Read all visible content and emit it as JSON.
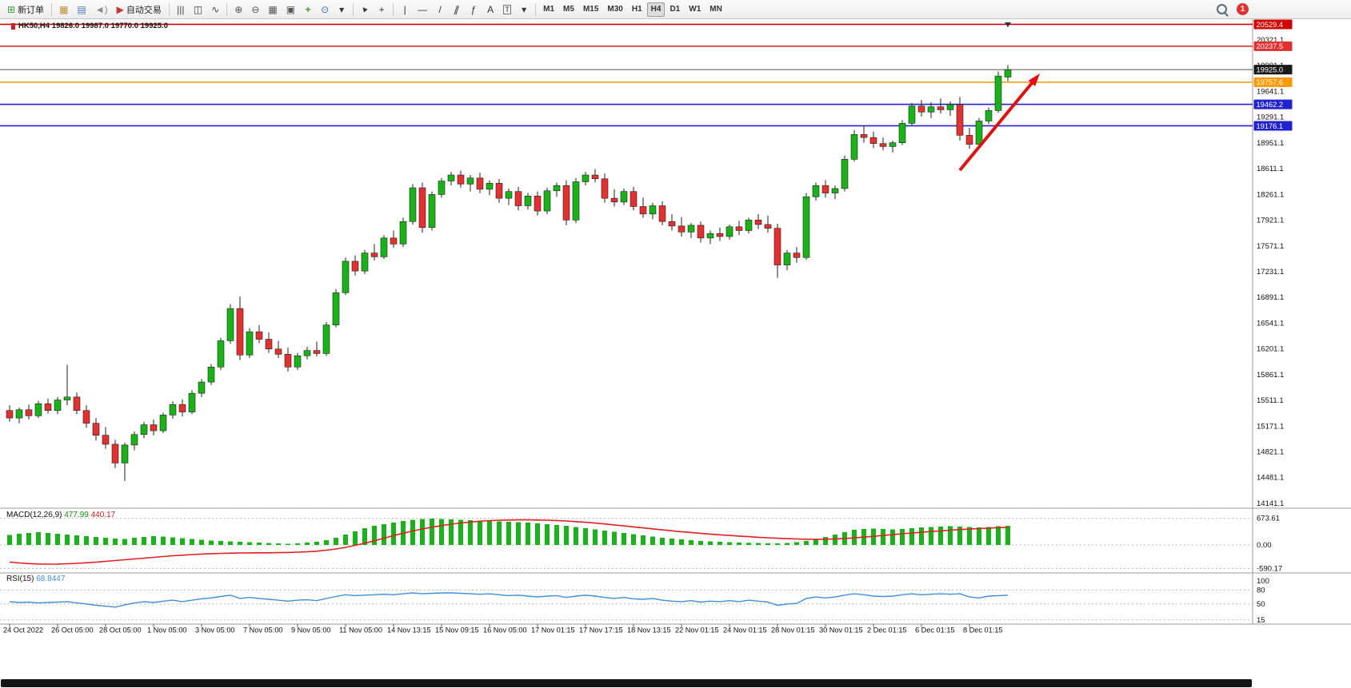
{
  "toolbar": {
    "groups": [
      [
        {
          "name": "new-order-button",
          "icon": "new-order-icon",
          "glyph": "⊞",
          "color": "#3aa13a",
          "label": "新订单"
        }
      ],
      [
        {
          "name": "new-chart-button",
          "icon": "new-chart-icon",
          "glyph": "▦",
          "color": "#b8912e"
        },
        {
          "name": "profiles-button",
          "icon": "profiles-icon",
          "glyph": "▤",
          "color": "#4a76b8"
        },
        {
          "name": "sound-alerts-button",
          "icon": "speaker-icon",
          "glyph": "◄)",
          "color": "#8a8a8a"
        },
        {
          "name": "algo-trading-button",
          "icon": "play-icon",
          "glyph": "▶",
          "color": "#cc3333",
          "label": "自动交易"
        }
      ],
      [
        {
          "name": "bar-chart-button",
          "icon": "bar-chart-icon",
          "glyph": "|||",
          "color": "#444"
        },
        {
          "name": "candlestick-chart-button",
          "icon": "candlestick-icon",
          "glyph": "◫",
          "color": "#444"
        },
        {
          "name": "line-chart-button",
          "icon": "line-chart-icon",
          "glyph": "∿",
          "color": "#444"
        }
      ],
      [
        {
          "name": "zoom-in-button",
          "icon": "zoom-in-icon",
          "glyph": "⊕",
          "color": "#555"
        },
        {
          "name": "zoom-out-button",
          "icon": "zoom-out-icon",
          "glyph": "⊖",
          "color": "#555"
        },
        {
          "name": "tile-windows-button",
          "icon": "tile-windows-icon",
          "glyph": "▦",
          "color": "#555"
        },
        {
          "name": "arrange-windows-button",
          "icon": "arrange-windows-icon",
          "glyph": "▣",
          "color": "#555"
        },
        {
          "name": "add-indicator-button",
          "icon": "plus-icon",
          "glyph": "+",
          "color": "#2e9e2e",
          "cls": "bold"
        },
        {
          "name": "period-button",
          "icon": "clock-icon",
          "glyph": "⊙",
          "color": "#3a6db8"
        },
        {
          "name": "chart-options-dropdown",
          "icon": "chevron-down-icon",
          "glyph": "▾",
          "color": "#333"
        }
      ],
      [
        {
          "name": "cursor-button",
          "icon": "cursor-icon",
          "glyph": "▲",
          "color": "#333",
          "cls": "rot-cursor"
        },
        {
          "name": "crosshair-button",
          "icon": "crosshair-icon",
          "glyph": "+",
          "color": "#333"
        }
      ],
      [
        {
          "name": "vertical-line-button",
          "icon": "vertical-line-icon",
          "glyph": "|",
          "color": "#333"
        },
        {
          "name": "horizontal-line-button",
          "icon": "horizontal-line-icon",
          "glyph": "—",
          "color": "#333"
        },
        {
          "name": "trendline-button",
          "icon": "trendline-icon",
          "glyph": "/",
          "color": "#333"
        },
        {
          "name": "channel-button",
          "icon": "channel-icon",
          "glyph": "∥",
          "color": "#333",
          "cls": "rot-channel"
        },
        {
          "name": "fibonacci-button",
          "icon": "fibonacci-icon",
          "glyph": "ƒ",
          "color": "#333"
        },
        {
          "name": "text-button",
          "icon": "text-icon",
          "glyph": "A",
          "color": "#333"
        },
        {
          "name": "label-button",
          "icon": "label-icon",
          "glyph": "T",
          "color": "#333",
          "cls": "boxed"
        },
        {
          "name": "shapes-dropdown",
          "icon": "chevron-down-icon",
          "glyph": "▾",
          "color": "#333"
        }
      ]
    ],
    "timeframes": [
      "M1",
      "M5",
      "M15",
      "M30",
      "H1",
      "H4",
      "D1",
      "W1",
      "MN"
    ],
    "active_timeframe": "H4",
    "notification_count": "1"
  },
  "chart": {
    "title": "HK50,H4 19826.0 19987.0 19770.0 19925.0",
    "macd": {
      "label": "MACD(12,26,9)",
      "value": "477.99",
      "signal": "440.17"
    },
    "rsi": {
      "label": "RSI(15)",
      "value": "68.8447"
    }
  },
  "chart_data": {
    "type": "candlestick",
    "symbol": "HK50",
    "timeframe": "H4",
    "ohlc_current": {
      "open": 19826.0,
      "high": 19987.0,
      "low": 19770.0,
      "close": 19925.0
    },
    "price_axis_labels": [
      "20321.1",
      "19991.1",
      "19641.1",
      "19291.1",
      "18951.1",
      "18611.1",
      "18261.1",
      "17921.1",
      "17571.1",
      "17231.1",
      "16891.1",
      "16541.1",
      "16201.1",
      "15861.1",
      "15511.1",
      "15171.1",
      "14821.1",
      "14481.1",
      "14141.1"
    ],
    "price_axis_top_value": 20321.1,
    "price_axis_bottom_value": 14141.1,
    "hlines": [
      {
        "value": 20529.4,
        "color": "#d20000",
        "label": "20529.4",
        "badge": "#d20000"
      },
      {
        "value": 20237.5,
        "color": "#e03030",
        "label": "20237.5",
        "badge": "#e03030"
      },
      {
        "value": 19925.0,
        "color": "#555555",
        "label": "19925.0",
        "badge": "#1a1a1a",
        "style": "price"
      },
      {
        "value": 19757.6,
        "color": "#ff9900",
        "label": "19757.6",
        "badge": "#ff9900"
      },
      {
        "value": 19462.2,
        "color": "#2222cc",
        "label": "19462.2",
        "badge": "#2222cc"
      },
      {
        "value": 19176.1,
        "color": "#2222cc",
        "label": "19176.1",
        "badge": "#2222cc"
      }
    ],
    "annotations": [
      {
        "type": "arrow-up-right",
        "color": "#e01010"
      }
    ],
    "candles": [
      [
        15380,
        15450,
        15230,
        15280
      ],
      [
        15280,
        15420,
        15210,
        15390
      ],
      [
        15390,
        15460,
        15260,
        15310
      ],
      [
        15310,
        15510,
        15280,
        15470
      ],
      [
        15470,
        15540,
        15340,
        15380
      ],
      [
        15380,
        15560,
        15330,
        15520
      ],
      [
        15520,
        15990,
        15450,
        15560
      ],
      [
        15560,
        15620,
        15330,
        15380
      ],
      [
        15380,
        15450,
        15150,
        15210
      ],
      [
        15210,
        15280,
        14980,
        15050
      ],
      [
        15050,
        15160,
        14870,
        14930
      ],
      [
        14930,
        14990,
        14610,
        14680
      ],
      [
        14680,
        14950,
        14440,
        14920
      ],
      [
        14920,
        15100,
        14850,
        15060
      ],
      [
        15060,
        15230,
        15010,
        15190
      ],
      [
        15190,
        15260,
        15050,
        15110
      ],
      [
        15110,
        15350,
        15080,
        15320
      ],
      [
        15320,
        15500,
        15270,
        15460
      ],
      [
        15460,
        15530,
        15300,
        15360
      ],
      [
        15360,
        15650,
        15330,
        15610
      ],
      [
        15610,
        15800,
        15560,
        15760
      ],
      [
        15760,
        16000,
        15720,
        15960
      ],
      [
        15960,
        16350,
        15920,
        16310
      ],
      [
        16310,
        16800,
        16270,
        16740
      ],
      [
        16740,
        16900,
        16050,
        16120
      ],
      [
        16120,
        16480,
        16080,
        16430
      ],
      [
        16430,
        16520,
        16280,
        16330
      ],
      [
        16330,
        16420,
        16150,
        16200
      ],
      [
        16200,
        16310,
        16080,
        16130
      ],
      [
        16130,
        16220,
        15900,
        15960
      ],
      [
        15960,
        16150,
        15920,
        16110
      ],
      [
        16110,
        16230,
        16060,
        16180
      ],
      [
        16180,
        16300,
        16100,
        16140
      ],
      [
        16140,
        16560,
        16110,
        16520
      ],
      [
        16520,
        17000,
        16490,
        16950
      ],
      [
        16950,
        17420,
        16920,
        17370
      ],
      [
        17370,
        17450,
        17180,
        17240
      ],
      [
        17240,
        17520,
        17200,
        17480
      ],
      [
        17480,
        17600,
        17380,
        17430
      ],
      [
        17430,
        17720,
        17400,
        17680
      ],
      [
        17680,
        17780,
        17550,
        17600
      ],
      [
        17600,
        17950,
        17560,
        17900
      ],
      [
        17900,
        18400,
        17860,
        18350
      ],
      [
        18350,
        18420,
        17750,
        17820
      ],
      [
        17820,
        18300,
        17780,
        18260
      ],
      [
        18260,
        18480,
        18220,
        18440
      ],
      [
        18440,
        18560,
        18380,
        18520
      ],
      [
        18520,
        18580,
        18350,
        18400
      ],
      [
        18400,
        18520,
        18300,
        18480
      ],
      [
        18480,
        18550,
        18280,
        18330
      ],
      [
        18330,
        18450,
        18250,
        18410
      ],
      [
        18410,
        18470,
        18150,
        18210
      ],
      [
        18210,
        18340,
        18120,
        18300
      ],
      [
        18300,
        18360,
        18050,
        18110
      ],
      [
        18110,
        18280,
        18060,
        18240
      ],
      [
        18240,
        18300,
        17980,
        18040
      ],
      [
        18040,
        18350,
        18000,
        18310
      ],
      [
        18310,
        18420,
        18230,
        18380
      ],
      [
        18380,
        18450,
        17850,
        17920
      ],
      [
        17920,
        18480,
        17880,
        18430
      ],
      [
        18430,
        18560,
        18380,
        18520
      ],
      [
        18520,
        18600,
        18420,
        18470
      ],
      [
        18470,
        18540,
        18150,
        18210
      ],
      [
        18210,
        18330,
        18100,
        18160
      ],
      [
        18160,
        18340,
        18120,
        18300
      ],
      [
        18300,
        18360,
        18050,
        18100
      ],
      [
        18100,
        18220,
        17950,
        18000
      ],
      [
        18000,
        18150,
        17930,
        18110
      ],
      [
        18110,
        18170,
        17850,
        17900
      ],
      [
        17900,
        18000,
        17780,
        17840
      ],
      [
        17840,
        17960,
        17700,
        17760
      ],
      [
        17760,
        17880,
        17680,
        17850
      ],
      [
        17850,
        17900,
        17620,
        17680
      ],
      [
        17680,
        17780,
        17600,
        17740
      ],
      [
        17740,
        17820,
        17640,
        17700
      ],
      [
        17700,
        17860,
        17660,
        17830
      ],
      [
        17830,
        17910,
        17720,
        17780
      ],
      [
        17780,
        17950,
        17740,
        17920
      ],
      [
        17920,
        18000,
        17800,
        17860
      ],
      [
        17860,
        17980,
        17750,
        17810
      ],
      [
        17810,
        17870,
        17150,
        17320
      ],
      [
        17320,
        17520,
        17250,
        17480
      ],
      [
        17480,
        17560,
        17350,
        17420
      ],
      [
        17420,
        18280,
        17390,
        18230
      ],
      [
        18230,
        18420,
        18180,
        18380
      ],
      [
        18380,
        18450,
        18220,
        18280
      ],
      [
        18280,
        18380,
        18200,
        18340
      ],
      [
        18340,
        18780,
        18300,
        18730
      ],
      [
        18730,
        19120,
        18700,
        19060
      ],
      [
        19060,
        19180,
        18950,
        19020
      ],
      [
        19020,
        19100,
        18880,
        18940
      ],
      [
        18940,
        19020,
        18850,
        18900
      ],
      [
        18900,
        18980,
        18820,
        18950
      ],
      [
        18950,
        19250,
        18920,
        19210
      ],
      [
        19210,
        19480,
        19180,
        19440
      ],
      [
        19440,
        19520,
        19300,
        19360
      ],
      [
        19360,
        19490,
        19280,
        19430
      ],
      [
        19430,
        19540,
        19340,
        19390
      ],
      [
        19390,
        19500,
        19310,
        19460
      ],
      [
        19460,
        19560,
        18980,
        19050
      ],
      [
        19050,
        19150,
        18870,
        18930
      ],
      [
        18930,
        19280,
        18900,
        19240
      ],
      [
        19240,
        19420,
        19200,
        19380
      ],
      [
        19380,
        19900,
        19350,
        19840
      ],
      [
        19826,
        19987,
        19770,
        19925
      ]
    ],
    "macd": {
      "axis": [
        "673.61",
        "0.00",
        "-590.17"
      ],
      "hist": [
        250,
        280,
        300,
        320,
        300,
        280,
        260,
        240,
        220,
        200,
        180,
        160,
        150,
        180,
        200,
        220,
        210,
        190,
        170,
        150,
        130,
        110,
        100,
        90,
        80,
        70,
        60,
        50,
        40,
        30,
        40,
        60,
        80,
        120,
        180,
        260,
        340,
        420,
        480,
        520,
        560,
        600,
        630,
        650,
        660,
        650,
        640,
        630,
        620,
        610,
        600,
        590,
        580,
        570,
        560,
        540,
        520,
        500,
        480,
        450,
        420,
        390,
        360,
        330,
        300,
        270,
        240,
        210,
        180,
        160,
        140,
        120,
        100,
        90,
        80,
        70,
        60,
        55,
        50,
        45,
        40,
        50,
        70,
        100,
        150,
        200,
        260,
        320,
        380,
        400,
        410,
        400,
        390,
        400,
        420,
        440,
        450,
        460,
        470,
        460,
        450,
        440,
        450,
        470,
        478
      ],
      "signal": [
        -430,
        -450,
        -465,
        -475,
        -480,
        -478,
        -470,
        -460,
        -445,
        -430,
        -410,
        -390,
        -370,
        -350,
        -330,
        -310,
        -290,
        -270,
        -255,
        -240,
        -228,
        -218,
        -210,
        -205,
        -200,
        -198,
        -196,
        -195,
        -192,
        -188,
        -180,
        -170,
        -155,
        -130,
        -100,
        -60,
        -10,
        45,
        105,
        170,
        235,
        295,
        350,
        400,
        445,
        485,
        520,
        550,
        575,
        595,
        610,
        620,
        625,
        628,
        628,
        625,
        620,
        612,
        600,
        585,
        568,
        548,
        526,
        502,
        477,
        452,
        427,
        402,
        378,
        355,
        333,
        312,
        292,
        273,
        255,
        238,
        222,
        207,
        193,
        180,
        168,
        158,
        150,
        145,
        143,
        145,
        152,
        163,
        178,
        196,
        216,
        237,
        258,
        279,
        299,
        318,
        336,
        353,
        369,
        384,
        398,
        411,
        423,
        434,
        440
      ]
    },
    "rsi": {
      "axis": [
        "100",
        "80",
        "50",
        "15"
      ],
      "levels": [
        80,
        50,
        15
      ],
      "values": [
        55,
        53,
        54,
        52,
        53,
        54,
        55,
        52,
        50,
        47,
        45,
        43,
        48,
        52,
        55,
        53,
        56,
        58,
        55,
        58,
        61,
        63,
        66,
        69,
        62,
        64,
        62,
        60,
        58,
        56,
        58,
        59,
        57,
        62,
        66,
        70,
        68,
        69,
        70,
        71,
        70,
        72,
        74,
        72,
        73,
        74,
        74,
        73,
        72,
        71,
        72,
        70,
        68,
        69,
        67,
        65,
        67,
        68,
        64,
        67,
        69,
        67,
        64,
        62,
        64,
        61,
        60,
        62,
        58,
        56,
        55,
        57,
        54,
        56,
        55,
        57,
        55,
        58,
        56,
        54,
        47,
        50,
        51,
        62,
        65,
        63,
        65,
        69,
        72,
        70,
        67,
        66,
        67,
        70,
        72,
        70,
        71,
        72,
        71,
        72,
        65,
        63,
        67,
        68,
        68.8
      ]
    },
    "time_labels": [
      "24 Oct 2022",
      "26 Oct 05:00",
      "28 Oct 05:00",
      "1 Nov 05:00",
      "3 Nov 05:00",
      "7 Nov 05:00",
      "9 Nov 05:00",
      "11 Nov 05:00",
      "14 Nov 13:15",
      "15 Nov 09:15",
      "16 Nov 05:00",
      "17 Nov 01:15",
      "17 Nov 17:15",
      "18 Nov 13:15",
      "22 Nov 01:15",
      "24 Nov 01:15",
      "28 Nov 01:15",
      "30 Nov 01:15",
      "2 Dec 01:15",
      "6 Dec 01:15",
      "8 Dec 01:15"
    ]
  }
}
